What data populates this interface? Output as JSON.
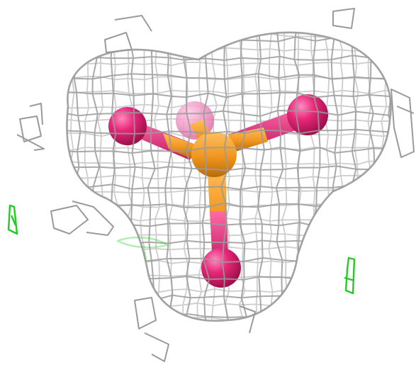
{
  "scene": {
    "background_color": "#ffffff",
    "mesh_color": "#9a9a9a",
    "mesh_highlight_color": "#c8c8c8",
    "diff_density_color": "#22cc22",
    "central_atom_color": "#f0961e",
    "terminal_atom_color": "#e8287a",
    "ghost_atom_color": "#f06cb0",
    "terminal_atom_count": 4,
    "icons": [
      "electron-density-mesh",
      "ligand-ball-and-stick",
      "difference-density-mesh"
    ]
  }
}
